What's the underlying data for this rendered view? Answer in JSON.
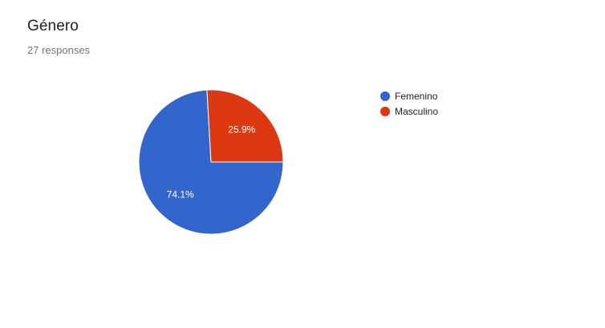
{
  "header": {
    "title": "Género",
    "responses": "27 responses"
  },
  "chart_data": {
    "type": "pie",
    "title": "Género",
    "legend_position": "right",
    "slices": [
      {
        "label": "Femenino",
        "value": 74.1,
        "display": "74.1%",
        "color": "#3366cc"
      },
      {
        "label": "Masculino",
        "value": 25.9,
        "display": "25.9%",
        "color": "#dc3912"
      }
    ]
  }
}
